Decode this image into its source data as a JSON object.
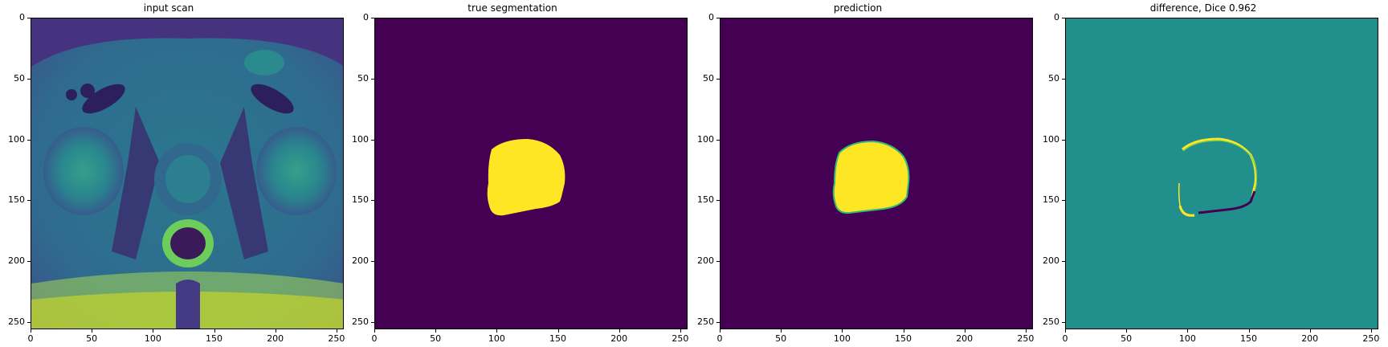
{
  "panels": [
    {
      "title": "input scan"
    },
    {
      "title": "true segmentation"
    },
    {
      "title": "prediction"
    },
    {
      "title": "difference, Dice 0.962"
    }
  ],
  "axes": {
    "x_ticks": [
      "0",
      "50",
      "100",
      "150",
      "200",
      "250"
    ],
    "y_ticks": [
      "0",
      "50",
      "100",
      "150",
      "200",
      "250"
    ],
    "range": [
      0,
      256
    ]
  },
  "colors": {
    "viridis_dark": "#440154",
    "viridis_mid": "#21908c",
    "viridis_bright": "#fde725"
  }
}
